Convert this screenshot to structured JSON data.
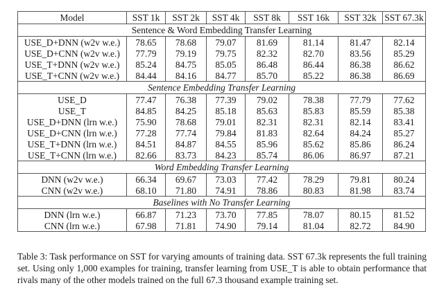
{
  "table": {
    "headers": [
      "Model",
      "SST 1k",
      "SST 2k",
      "SST 4k",
      "SST 8k",
      "SST 16k",
      "SST 32k",
      "SST 67.3k"
    ],
    "sections": [
      {
        "title": "Sentence & Word Embedding Transfer Learning",
        "italic": false,
        "rows": [
          {
            "model": "USE_D+DNN (w2v w.e.)",
            "values": [
              "78.65",
              "78.68",
              "79.07",
              "81.69",
              "81.14",
              "81.47",
              "82.14"
            ]
          },
          {
            "model": "USE_D+CNN (w2v w.e.)",
            "values": [
              "77.79",
              "79.19",
              "79.75",
              "82.32",
              "82.70",
              "83.56",
              "85.29"
            ]
          },
          {
            "model": "USE_T+DNN (w2v w.e.)",
            "values": [
              "85.24",
              "84.75",
              "85.05",
              "86.48",
              "86.44",
              "86.38",
              "86.62"
            ]
          },
          {
            "model": "USE_T+CNN (w2v w.e.)",
            "values": [
              "84.44",
              "84.16",
              "84.77",
              "85.70",
              "85.22",
              "86.38",
              "86.69"
            ]
          }
        ]
      },
      {
        "title": "Sentence Embedding Transfer Learning",
        "italic": true,
        "rows": [
          {
            "model": "USE_D",
            "values": [
              "77.47",
              "76.38",
              "77.39",
              "79.02",
              "78.38",
              "77.79",
              "77.62"
            ]
          },
          {
            "model": "USE_T",
            "values": [
              "84.85",
              "84.25",
              "85.18",
              "85.63",
              "85.83",
              "85.59",
              "85.38"
            ]
          },
          {
            "model": "USE_D+DNN (lrn w.e.)",
            "values": [
              "75.90",
              "78.68",
              "79.01",
              "82.31",
              "82.31",
              "82.14",
              "83.41"
            ]
          },
          {
            "model": "USE_D+CNN (lrn w.e.)",
            "values": [
              "77.28",
              "77.74",
              "79.84",
              "81.83",
              "82.64",
              "84.24",
              "85.27"
            ]
          },
          {
            "model": "USE_T+DNN (lrn w.e.)",
            "values": [
              "84.51",
              "84.87",
              "84.55",
              "85.96",
              "85.62",
              "85.86",
              "86.24"
            ]
          },
          {
            "model": "USE_T+CNN (lrn w.e.)",
            "values": [
              "82.66",
              "83.73",
              "84.23",
              "85.74",
              "86.06",
              "86.97",
              "87.21"
            ]
          }
        ]
      },
      {
        "title": "Word Embedding Transfer Learning",
        "italic": true,
        "rows": [
          {
            "model": "DNN (w2v w.e.)",
            "values": [
              "66.34",
              "69.67",
              "73.03",
              "77.42",
              "78.29",
              "79.81",
              "80.24"
            ]
          },
          {
            "model": "CNN (w2v w.e.)",
            "values": [
              "68.10",
              "71.80",
              "74.91",
              "78.86",
              "80.83",
              "81.98",
              "83.74"
            ]
          }
        ]
      },
      {
        "title": "Baselines with No Transfer Learning",
        "italic": true,
        "rows": [
          {
            "model": "DNN (lrn w.e.)",
            "values": [
              "66.87",
              "71.23",
              "73.70",
              "77.85",
              "78.07",
              "80.15",
              "81.52"
            ]
          },
          {
            "model": "CNN (lrn w.e.)",
            "values": [
              "67.98",
              "71.81",
              "74.90",
              "79.14",
              "81.04",
              "82.72",
              "84.90"
            ]
          }
        ]
      }
    ]
  },
  "caption": "Table 3: Task performance on SST for varying amounts of training data. SST 67.3k represents the full training set. Using only 1,000 examples for training, transfer learning from USE_T is able to obtain performance that rivals many of the other models trained on the full 67.3 thousand example training set."
}
